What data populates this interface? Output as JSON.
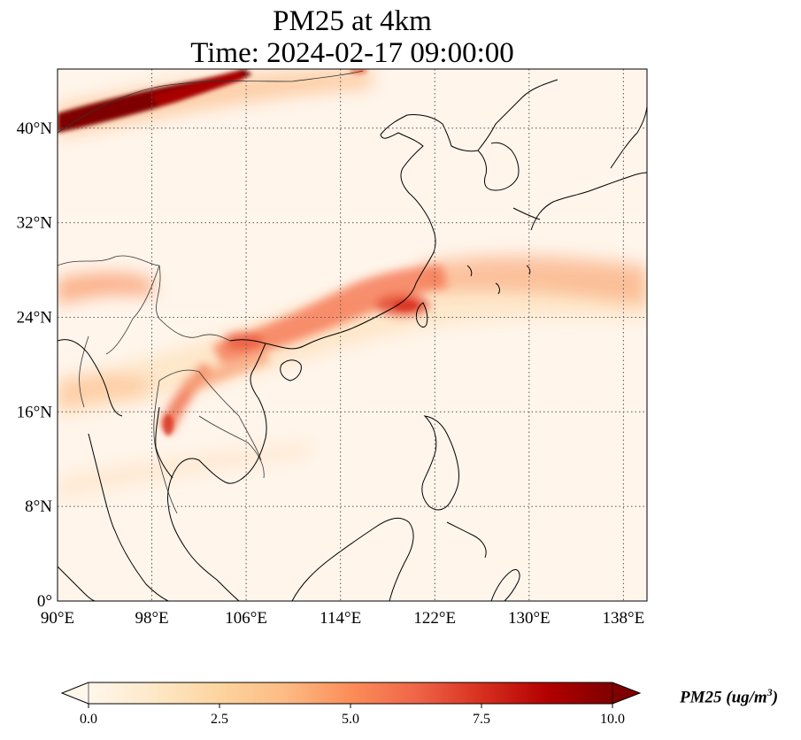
{
  "title": {
    "line1": "PM25 at 4km",
    "line2": "Time: 2024-02-17 09:00:00"
  },
  "map": {
    "extent": {
      "lon": [
        90,
        140
      ],
      "lat": [
        0,
        45
      ]
    },
    "lon_ticks": [
      {
        "value": 90,
        "label": "90°E"
      },
      {
        "value": 98,
        "label": "98°E"
      },
      {
        "value": 106,
        "label": "106°E"
      },
      {
        "value": 114,
        "label": "114°E"
      },
      {
        "value": 122,
        "label": "122°E"
      },
      {
        "value": 130,
        "label": "130°E"
      },
      {
        "value": 138,
        "label": "138°E"
      }
    ],
    "lat_ticks": [
      {
        "value": 0,
        "label": "0°"
      },
      {
        "value": 8,
        "label": "8°N"
      },
      {
        "value": 16,
        "label": "16°N"
      },
      {
        "value": 24,
        "label": "24°N"
      },
      {
        "value": 32,
        "label": "32°N"
      },
      {
        "value": 40,
        "label": "40°N"
      }
    ],
    "gridlines": "dotted",
    "background_color": "#fff5eb",
    "coast_color": "#000000",
    "border_color": "#333333"
  },
  "colorbar": {
    "colormap": "OrRd",
    "min": 0,
    "max": 10,
    "extend": "both",
    "ticks": [
      {
        "value": 0,
        "label": "0.0"
      },
      {
        "value": 2.5,
        "label": "2.5"
      },
      {
        "value": 5,
        "label": "5.0"
      },
      {
        "value": 7.5,
        "label": "7.5"
      },
      {
        "value": 10,
        "label": "10.0"
      }
    ],
    "label_prefix": "PM25 (ug/m",
    "label_exp": "3",
    "label_suffix": ")",
    "stops": [
      "#fff7ec",
      "#fee8c8",
      "#fdd49e",
      "#fdbb84",
      "#fc8d59",
      "#ef6548",
      "#d7301f",
      "#b30000",
      "#7f0000"
    ]
  }
}
